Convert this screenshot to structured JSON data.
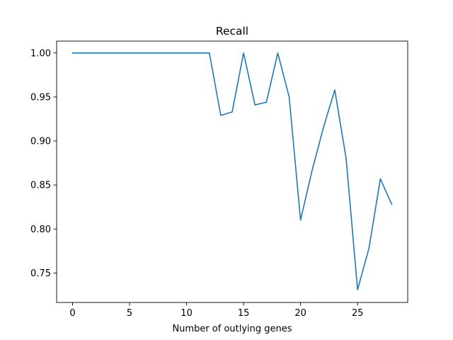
{
  "chart_data": {
    "type": "line",
    "title": "Recall",
    "xlabel": "Number of outlying genes",
    "ylabel": "",
    "xlim": [
      -1.4,
      29.4
    ],
    "ylim": [
      0.7165,
      1.0135
    ],
    "xticks": [
      0,
      5,
      10,
      15,
      20,
      25
    ],
    "xtick_labels": [
      "0",
      "5",
      "10",
      "15",
      "20",
      "25"
    ],
    "yticks": [
      0.75,
      0.8,
      0.85,
      0.9,
      0.95,
      1.0
    ],
    "ytick_labels": [
      "0.75",
      "0.80",
      "0.85",
      "0.90",
      "0.95",
      "1.00"
    ],
    "grid": false,
    "legend": "none",
    "series": [
      {
        "color": "#1f77b4",
        "x": [
          0,
          1,
          2,
          3,
          4,
          5,
          6,
          7,
          8,
          9,
          10,
          11,
          12,
          13,
          14,
          15,
          16,
          17,
          18,
          19,
          20,
          21,
          22,
          23,
          24,
          25,
          26,
          27,
          28
        ],
        "y": [
          1.0,
          1.0,
          1.0,
          1.0,
          1.0,
          1.0,
          1.0,
          1.0,
          1.0,
          1.0,
          1.0,
          1.0,
          1.0,
          0.929,
          0.933,
          1.0,
          0.941,
          0.944,
          1.0,
          0.95,
          0.81,
          0.866,
          0.915,
          0.958,
          0.88,
          0.731,
          0.778,
          0.857,
          0.828
        ]
      }
    ]
  }
}
